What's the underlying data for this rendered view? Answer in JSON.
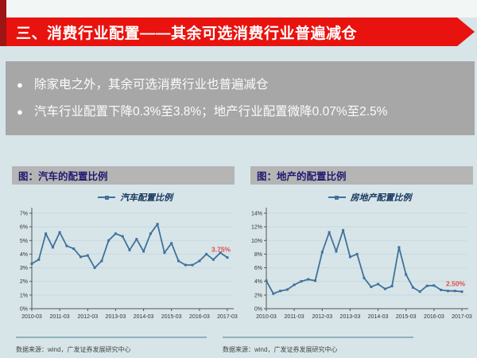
{
  "slide": {
    "title": "三、消费行业配置——其余可选消费行业普遍减仓",
    "bullets": [
      "除家电之外，其余可选消费行业也普遍减仓",
      "汽车行业配置下降0.3%至3.8%；地产行业配置微降0.07%至2.5%"
    ],
    "source_note": "数据来源：wind，广发证券发展研究中心"
  },
  "colors": {
    "banner_red": "#e8120e",
    "ribbon_dark_red": "#9e1515",
    "panel_gray": "#a7a7a7",
    "caption_bar_gray": "#b5b5b5",
    "caption_text_navy": "#1f1a6e",
    "line_blue": "#41719c",
    "end_label_red": "#e14b4b",
    "slide_bg": "#d7e5e9"
  },
  "chart_data": [
    {
      "type": "line",
      "caption": "图：汽车的配置比例",
      "title": "汽车配置比例",
      "x": [
        "2010-03",
        "2010-06",
        "2010-09",
        "2010-12",
        "2011-03",
        "2011-06",
        "2011-09",
        "2011-12",
        "2012-03",
        "2012-06",
        "2012-09",
        "2012-12",
        "2013-03",
        "2013-06",
        "2013-09",
        "2013-12",
        "2014-03",
        "2014-06",
        "2014-09",
        "2014-12",
        "2015-03",
        "2015-06",
        "2015-09",
        "2015-12",
        "2016-03",
        "2016-06",
        "2016-09",
        "2016-12",
        "2017-03"
      ],
      "values": [
        3.3,
        3.6,
        5.5,
        4.5,
        5.6,
        4.6,
        4.4,
        3.8,
        3.9,
        3.0,
        3.5,
        5.0,
        5.5,
        5.3,
        4.3,
        5.1,
        4.2,
        5.5,
        6.2,
        4.1,
        4.8,
        3.5,
        3.2,
        3.2,
        3.5,
        4.0,
        3.6,
        4.1,
        3.75
      ],
      "xlabel": "",
      "ylabel": "",
      "ylim": [
        0,
        7
      ],
      "ytick_step": 1,
      "ytick_suffix": "%",
      "xtick_every": 4,
      "xtick_labels": [
        "2010-03",
        "2011-03",
        "2012-03",
        "2013-03",
        "2014-03",
        "2015-03",
        "2016-03",
        "2017-03"
      ],
      "grid": true,
      "legend_position": "top",
      "end_label": "3.75%",
      "line_color": "#41719c"
    },
    {
      "type": "line",
      "caption": "图：地产的配置比例",
      "title": "房地产配置比例",
      "x": [
        "2010-03",
        "2010-06",
        "2010-09",
        "2010-12",
        "2011-03",
        "2011-06",
        "2011-09",
        "2011-12",
        "2012-03",
        "2012-06",
        "2012-09",
        "2012-12",
        "2013-03",
        "2013-06",
        "2013-09",
        "2013-12",
        "2014-03",
        "2014-06",
        "2014-09",
        "2014-12",
        "2015-03",
        "2015-06",
        "2015-09",
        "2015-12",
        "2016-03",
        "2016-06",
        "2016-09",
        "2016-12",
        "2017-03"
      ],
      "values": [
        4.1,
        2.2,
        2.6,
        2.8,
        3.5,
        4.0,
        4.3,
        4.1,
        8.3,
        11.2,
        8.4,
        11.5,
        7.6,
        8.0,
        4.5,
        3.2,
        3.6,
        2.9,
        3.3,
        9.0,
        5.0,
        3.1,
        2.5,
        3.35,
        3.4,
        2.75,
        2.6,
        2.6,
        2.5
      ],
      "xlabel": "",
      "ylabel": "",
      "ylim": [
        0,
        14
      ],
      "ytick_step": 2,
      "ytick_suffix": "%",
      "xtick_every": 4,
      "xtick_labels": [
        "2010-03",
        "2011-03",
        "2012-03",
        "2013-03",
        "2014-03",
        "2015-03",
        "2016-03",
        "2017-03"
      ],
      "grid": true,
      "legend_position": "top",
      "end_label": "2.50%",
      "line_color": "#41719c"
    }
  ]
}
